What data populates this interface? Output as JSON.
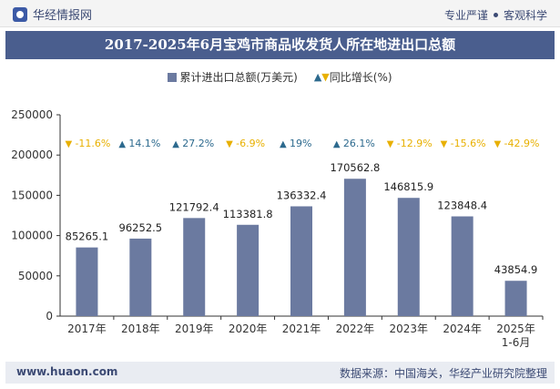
{
  "header": {
    "site": "华经情报网",
    "tag1": "专业严谨",
    "tag2": "客观科学"
  },
  "chart_data": {
    "type": "bar",
    "title": "2017-2025年6月宝鸡市商品收发货人所在地进出口总额",
    "categories": [
      "2017年",
      "2018年",
      "2019年",
      "2020年",
      "2021年",
      "2022年",
      "2023年",
      "2024年",
      "2025年\n1-6月"
    ],
    "series": [
      {
        "name": "累计进出口总额(万美元)",
        "values": [
          85265.1,
          96252.5,
          121792.4,
          113381.8,
          136332.4,
          170562.8,
          146815.9,
          123848.4,
          43854.9
        ]
      }
    ],
    "growth": {
      "name": "同比增长(%)",
      "values": [
        -11.6,
        14.1,
        27.2,
        -6.9,
        19,
        26.1,
        -12.9,
        -15.6,
        -42.9
      ],
      "labels": [
        "-11.6%",
        "14.1%",
        "27.2%",
        "-6.9%",
        "19%",
        "26.1%",
        "-12.9%",
        "-15.6%",
        "-42.9%"
      ]
    },
    "value_labels": [
      "85265.1",
      "96252.5",
      "121792.4",
      "113381.8",
      "136332.4",
      "170562.8",
      "146815.9",
      "123848.4",
      "43854.9"
    ],
    "ylim": [
      0,
      250000
    ],
    "yticks": [
      0,
      50000,
      100000,
      150000,
      200000,
      250000
    ],
    "colors": {
      "bar": "#6b7aa0",
      "up": "#2d6a8e",
      "down": "#e8b000"
    },
    "legend_position": "top-center",
    "grid": false
  },
  "footer": {
    "url": "www.huaon.com",
    "source": "数据来源：中国海关，华经产业研究院整理"
  }
}
